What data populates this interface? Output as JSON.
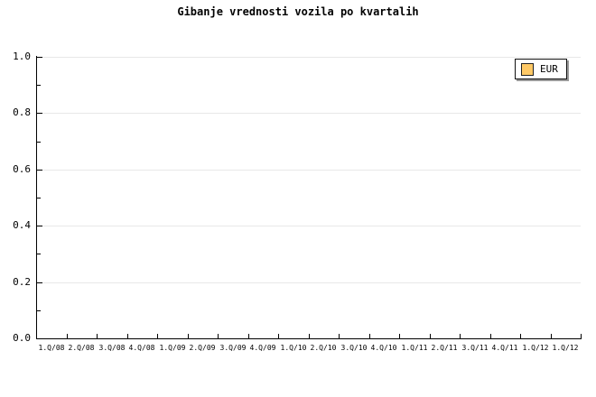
{
  "title": "Gibanje vrednosti vozila po kvartalih",
  "legend": {
    "label": "EUR",
    "swatch_color": "#ffc966",
    "position": "top-right"
  },
  "appearance": {
    "background": "#ffffff",
    "axis_color": "#000000",
    "gridline_color": "#e8e8e8",
    "legend_bg": "#ffffff",
    "legend_shadow": "#999999"
  },
  "chart_data": {
    "type": "line",
    "title": "Gibanje vrednosti vozila po kvartalih",
    "xlabel": "",
    "ylabel": "",
    "categories": [
      "1.Q/08",
      "2.Q/08",
      "3.Q/08",
      "4.Q/08",
      "1.Q/09",
      "2.Q/09",
      "3.Q/09",
      "4.Q/09",
      "1.Q/10",
      "2.Q/10",
      "3.Q/10",
      "4.Q/10",
      "1.Q/11",
      "2.Q/11",
      "3.Q/11",
      "4.Q/11",
      "1.Q/12",
      "1.Q/12"
    ],
    "series": [
      {
        "name": "EUR",
        "color": "#ffc966",
        "values": []
      }
    ],
    "ylim": [
      0.0,
      1.0
    ],
    "y_major_step": 0.2,
    "y_minor_step": 0.1,
    "y_tick_labels": [
      "0.0",
      "0.2",
      "0.4",
      "0.6",
      "0.8",
      "1.0"
    ],
    "grid": "horizontal-major-only",
    "legend_position": "top-right",
    "plot_is_empty": true
  }
}
